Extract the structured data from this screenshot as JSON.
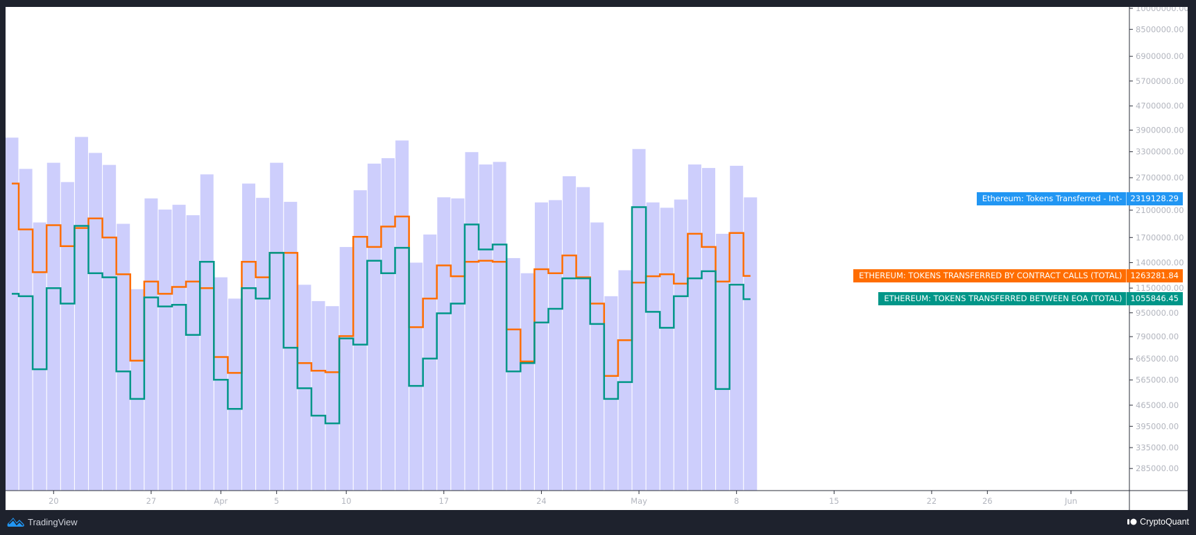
{
  "footer": {
    "left_brand": "TradingView",
    "right_brand": "CryptoQuant"
  },
  "colors": {
    "bars": "#cdcefc",
    "contract_calls": "#ff6d00",
    "eoa": "#009688",
    "interval_label": "#2196f3",
    "axis_text": "#b2b5be"
  },
  "chart_data": {
    "type": "bar+step-line",
    "y_scale": "log",
    "ylim": [
      250000,
      10000000
    ],
    "grid": false,
    "x_ticks": [
      {
        "label": "20",
        "date": "Mar 20"
      },
      {
        "label": "27",
        "date": "Mar 27"
      },
      {
        "label": "Apr",
        "date": "Apr 1"
      },
      {
        "label": "5",
        "date": "Apr 5"
      },
      {
        "label": "10",
        "date": "Apr 10"
      },
      {
        "label": "17",
        "date": "Apr 17"
      },
      {
        "label": "24",
        "date": "Apr 24"
      },
      {
        "label": "May",
        "date": "May 1"
      },
      {
        "label": "8",
        "date": "May 8"
      },
      {
        "label": "15",
        "date": "May 15"
      },
      {
        "label": "22",
        "date": "May 22"
      },
      {
        "label": "26",
        "date": "May 26"
      },
      {
        "label": "Jun",
        "date": "Jun 1"
      }
    ],
    "y_ticks": [
      "10000000.00",
      "8500000.00",
      "6900000.00",
      "5700000.00",
      "4700000.00",
      "3900000.00",
      "3300000.00",
      "2700000.00",
      "2100000.00",
      "1700000.00",
      "1400000.00",
      "1150000.00",
      "950000.00",
      "790000.00",
      "665000.00",
      "565000.00",
      "465000.00",
      "395000.00",
      "335000.00",
      "285000.00"
    ],
    "dates": [
      "Mar 17",
      "Mar 18",
      "Mar 19",
      "Mar 20",
      "Mar 21",
      "Mar 22",
      "Mar 23",
      "Mar 24",
      "Mar 25",
      "Mar 26",
      "Mar 27",
      "Mar 28",
      "Mar 29",
      "Mar 30",
      "Mar 31",
      "Apr 1",
      "Apr 2",
      "Apr 3",
      "Apr 4",
      "Apr 5",
      "Apr 6",
      "Apr 7",
      "Apr 8",
      "Apr 9",
      "Apr 10",
      "Apr 11",
      "Apr 12",
      "Apr 13",
      "Apr 14",
      "Apr 15",
      "Apr 16",
      "Apr 17",
      "Apr 18",
      "Apr 19",
      "Apr 20",
      "Apr 21",
      "Apr 22",
      "Apr 23",
      "Apr 24",
      "Apr 25",
      "Apr 26",
      "Apr 27",
      "Apr 28",
      "Apr 29",
      "Apr 30",
      "May 1",
      "May 2",
      "May 3",
      "May 4",
      "May 5",
      "May 6",
      "May 7",
      "May 8",
      "May 9"
    ],
    "series": [
      {
        "name": "Ethereum: Tokens Transferred - Int-",
        "type": "bar",
        "last_value": "2319128.29",
        "values": [
          3680000,
          2890000,
          1910000,
          3030000,
          2610000,
          3700000,
          3270000,
          2980000,
          1890000,
          1140000,
          2300000,
          2110000,
          2190000,
          2020000,
          2770000,
          1250000,
          1060000,
          2580000,
          2310000,
          3030000,
          2240000,
          1180000,
          1040000,
          1000000,
          1580000,
          2450000,
          3010000,
          3140000,
          3600000,
          1400000,
          1740000,
          2320000,
          2300000,
          3290000,
          2990000,
          3050000,
          1450000,
          1290000,
          2230000,
          2270000,
          2730000,
          2510000,
          1910000,
          1080000,
          1320000,
          3370000,
          2230000,
          2140000,
          2280000,
          2990000,
          2910000,
          1750000,
          2960000,
          2319128.29
        ]
      },
      {
        "name": "ETHEREUM: TOKENS TRANSFERRED BY CONTRACT CALLS (TOTAL)",
        "type": "step",
        "last_value": "1263281.84",
        "values": [
          2580000,
          1810000,
          1300000,
          1870000,
          1590000,
          1830000,
          1970000,
          1700000,
          1280000,
          656000,
          1210000,
          1100000,
          1160000,
          1210000,
          1150000,
          675000,
          597000,
          1410000,
          1250000,
          1510000,
          1510000,
          644000,
          607000,
          600000,
          793000,
          1710000,
          1580000,
          1850000,
          2000000,
          850000,
          1060000,
          1370000,
          1260000,
          1410000,
          1420000,
          1410000,
          835000,
          652000,
          1330000,
          1290000,
          1480000,
          1250000,
          1020000,
          583000,
          769000,
          1200000,
          1260000,
          1280000,
          1190000,
          1750000,
          1580000,
          1210000,
          1760000,
          1263281.84
        ]
      },
      {
        "name": "ETHEREUM: TOKENS TRANSFERRED BETWEEN EOA (TOTAL)",
        "type": "step",
        "last_value": "1055846.45",
        "values": [
          1100000,
          1080000,
          614000,
          1150000,
          1020000,
          1860000,
          1290000,
          1250000,
          604000,
          488000,
          1070000,
          998000,
          1010000,
          801000,
          1410000,
          566000,
          452000,
          1150000,
          1060000,
          1510000,
          725000,
          530000,
          429000,
          404000,
          779000,
          743000,
          1420000,
          1290000,
          1570000,
          540000,
          667000,
          946000,
          1020000,
          1880000,
          1550000,
          1610000,
          604000,
          644000,
          881000,
          980000,
          1240000,
          1240000,
          871000,
          488000,
          556000,
          2150000,
          957000,
          846000,
          1080000,
          1240000,
          1310000,
          527000,
          1180000,
          1055846.45
        ]
      }
    ]
  }
}
